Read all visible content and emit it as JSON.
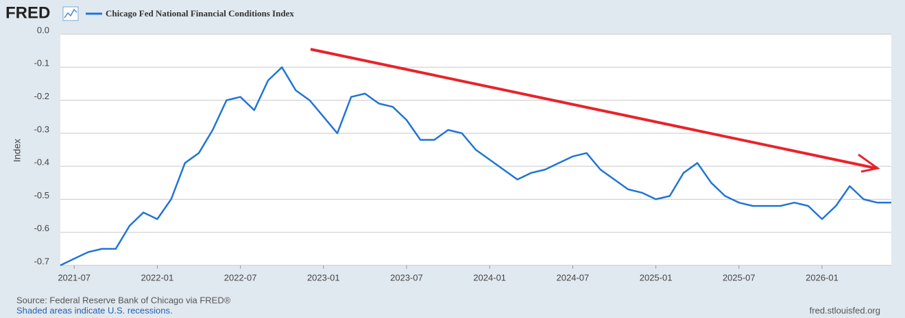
{
  "chart_data": {
    "type": "line",
    "brand": "FRED",
    "title": "Chicago Fed National Financial Conditions Index",
    "ylabel": "Index",
    "source": "Source: Federal Reserve Bank of Chicago via FRED®",
    "note": "Shaded areas indicate U.S. recessions.",
    "url": "fred.stlouisfed.org",
    "x": [
      "2021-06",
      "2021-07",
      "2021-08",
      "2021-09",
      "2021-10",
      "2021-11",
      "2021-12",
      "2022-01",
      "2022-02",
      "2022-03",
      "2022-04",
      "2022-05",
      "2022-06",
      "2022-07",
      "2022-08",
      "2022-09",
      "2022-10",
      "2022-11",
      "2022-12",
      "2023-01",
      "2023-02",
      "2023-03",
      "2023-04",
      "2023-05",
      "2023-06",
      "2023-07",
      "2023-08",
      "2023-09",
      "2023-10",
      "2023-11",
      "2023-12",
      "2024-01",
      "2024-02",
      "2024-03",
      "2024-04",
      "2024-05",
      "2024-06",
      "2024-07",
      "2024-08",
      "2024-09",
      "2024-10",
      "2024-11",
      "2024-12",
      "2025-01",
      "2025-02",
      "2025-03",
      "2025-04",
      "2025-05",
      "2025-06",
      "2025-07",
      "2025-08",
      "2025-09",
      "2025-10",
      "2025-11",
      "2025-12",
      "2026-01",
      "2026-02",
      "2026-03",
      "2026-04",
      "2026-05",
      "2026-06"
    ],
    "series": [
      {
        "name": "Chicago Fed National Financial Conditions Index",
        "color": "#1f74d6",
        "values": [
          -0.7,
          -0.68,
          -0.66,
          -0.65,
          -0.65,
          -0.58,
          -0.54,
          -0.56,
          -0.5,
          -0.39,
          -0.36,
          -0.29,
          -0.2,
          -0.19,
          -0.23,
          -0.14,
          -0.1,
          -0.17,
          -0.2,
          -0.25,
          -0.3,
          -0.19,
          -0.18,
          -0.21,
          -0.22,
          -0.26,
          -0.32,
          -0.32,
          -0.29,
          -0.3,
          -0.35,
          -0.38,
          -0.41,
          -0.44,
          -0.42,
          -0.41,
          -0.39,
          -0.37,
          -0.36,
          -0.41,
          -0.44,
          -0.47,
          -0.48,
          -0.5,
          -0.49,
          -0.42,
          -0.39,
          -0.45,
          -0.49,
          -0.51,
          -0.52,
          -0.52,
          -0.52,
          -0.51,
          -0.52,
          -0.56,
          -0.52,
          -0.46,
          -0.5,
          -0.51,
          -0.51
        ]
      }
    ],
    "xlim": [
      "2021-06",
      "2026-06"
    ],
    "xticks": [
      "2021-07",
      "2022-01",
      "2022-07",
      "2023-01",
      "2023-07",
      "2024-01",
      "2024-07",
      "2025-01",
      "2025-07",
      "2026-01"
    ],
    "ylim": [
      -0.7,
      0
    ],
    "yticks": [
      {
        "value": 0,
        "label": "0.0"
      },
      -0.1,
      -0.2,
      -0.3,
      -0.4,
      -0.5,
      -0.6,
      -0.7
    ],
    "grid": true
  }
}
